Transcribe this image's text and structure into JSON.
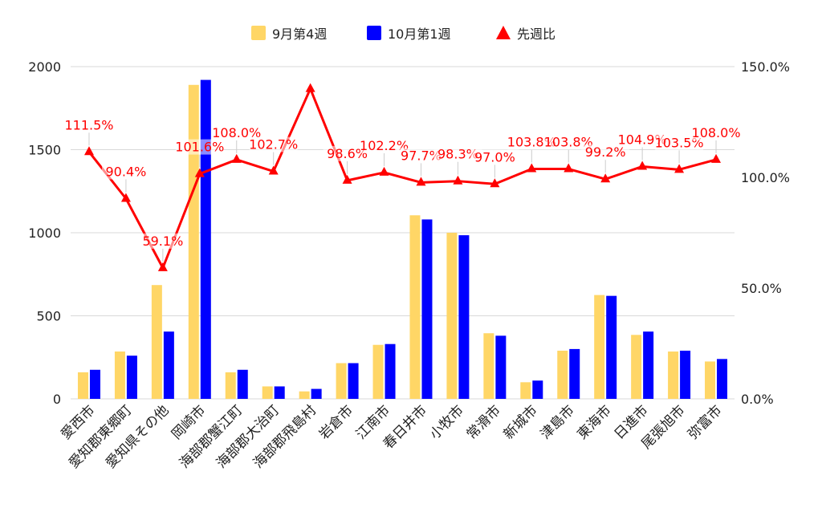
{
  "chart_data": {
    "type": "bar",
    "combo": "bar+line",
    "categories": [
      "愛西市",
      "愛知郡東郷町",
      "愛知県その他",
      "岡崎市",
      "海部郡蟹江町",
      "海部郡大治町",
      "海部郡飛島村",
      "岩倉市",
      "江南市",
      "春日井市",
      "小牧市",
      "常滑市",
      "新城市",
      "津島市",
      "東海市",
      "日進市",
      "尾張旭市",
      "弥富市"
    ],
    "series": [
      {
        "name": "9月第4週",
        "type": "bar",
        "axis": "left",
        "color": "#ffd666",
        "values": [
          160,
          285,
          685,
          1890,
          160,
          75,
          45,
          215,
          325,
          1105,
          1000,
          395,
          100,
          290,
          625,
          385,
          285,
          225
        ]
      },
      {
        "name": "10月第1週",
        "type": "bar",
        "axis": "left",
        "color": "#0000ff",
        "values": [
          175,
          260,
          405,
          1920,
          175,
          75,
          60,
          215,
          330,
          1080,
          985,
          380,
          110,
          300,
          620,
          405,
          290,
          240
        ]
      },
      {
        "name": "先週比",
        "type": "line",
        "axis": "right",
        "color": "#ff0000",
        "marker": "triangle",
        "values": [
          111.5,
          90.4,
          59.1,
          101.6,
          108.0,
          102.7,
          140.0,
          98.6,
          102.2,
          97.7,
          98.3,
          97.0,
          103.8,
          103.8,
          99.2,
          104.9,
          103.5,
          108.0
        ],
        "labels": [
          "111.5%",
          "90.4%",
          "59.1%",
          "101.6%",
          "108.0%",
          "102.7%",
          "",
          "98.6%",
          "102.2%",
          "97.7%",
          "98.3%",
          "97.0%",
          "103.8%",
          "103.8%",
          "99.2%",
          "104.9%",
          "103.5%",
          "108.0%"
        ]
      }
    ],
    "y_left": {
      "ticks": [
        "0",
        "500",
        "1000",
        "1500",
        "2000"
      ],
      "range": [
        0,
        2000
      ]
    },
    "y_right": {
      "ticks": [
        "0.0%",
        "50.0%",
        "100.0%",
        "150.0%"
      ],
      "range": [
        0,
        150
      ]
    },
    "grid": true,
    "legend_position": "top-center",
    "title": "",
    "xlabel": "",
    "ylabel": ""
  }
}
